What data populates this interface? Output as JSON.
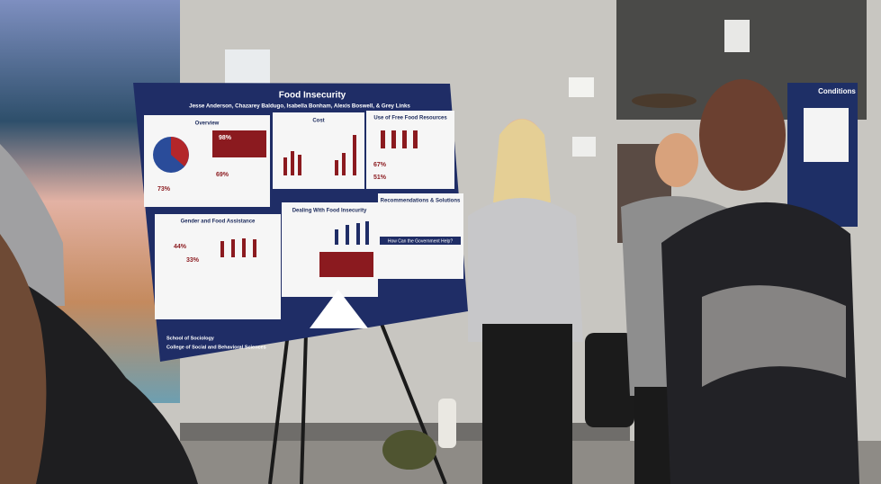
{
  "poster": {
    "title": "Food Insecurity",
    "authors": "Jesse Anderson, Chazarey Baldugo, Isabella Bonham, Alexis Boswell, & Grey Links",
    "sections": [
      {
        "heading": "Overview",
        "stats": [
          "98%",
          "73%",
          "69%"
        ]
      },
      {
        "heading": "Cost"
      },
      {
        "heading": "Use of Free Food Resources",
        "stats": [
          "67%",
          "51%"
        ]
      },
      {
        "heading": "Gender and Food Assistance",
        "stats": [
          "44%",
          "33%"
        ]
      },
      {
        "heading": "Dealing With Food Insecurity"
      },
      {
        "heading": "Recommendations & Solutions",
        "subheading": "How Can the Government Help?"
      }
    ],
    "footer": [
      "School of Sociology",
      "College of Social and Behavioral Sciences"
    ]
  },
  "background_poster": {
    "title_fragment": "Conditions"
  }
}
